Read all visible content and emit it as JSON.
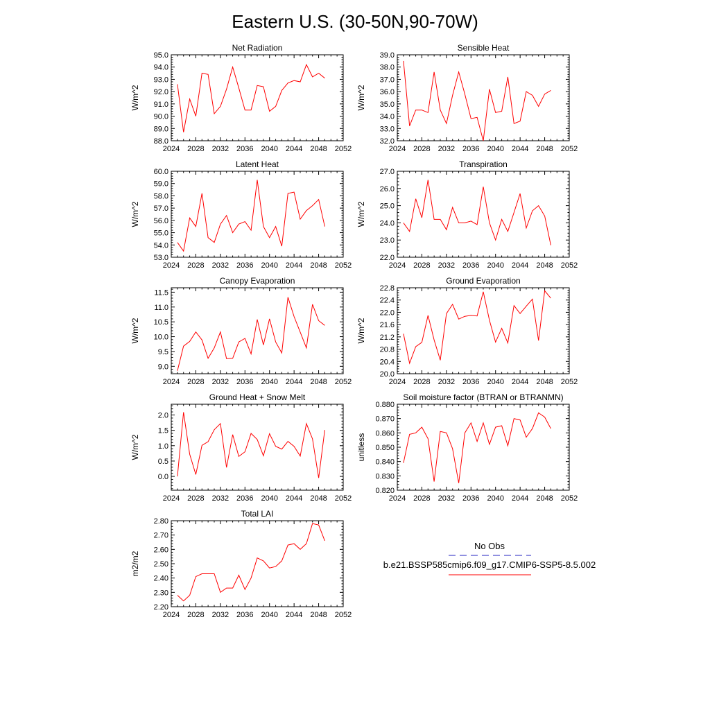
{
  "figure": {
    "title": "Eastern U.S. (30-50N,90-70W)"
  },
  "legend": {
    "entries": [
      {
        "label": "No Obs",
        "color": "#2020c0",
        "style": "dashed"
      },
      {
        "label": "b.e21.BSSP585cmip6.f09_g17.CMIP6-SSP5-8.5.002",
        "color": "#ff0000",
        "style": "solid"
      }
    ]
  },
  "chart_data": [
    {
      "type": "line",
      "title": "Net Radiation",
      "ylabel": "W/m^2",
      "xlim": [
        2024,
        2052
      ],
      "ylim": [
        88.0,
        95.0
      ],
      "xticks": [
        2024,
        2028,
        2032,
        2036,
        2040,
        2044,
        2048,
        2052
      ],
      "yticks": [
        "88.0",
        "89.0",
        "90.0",
        "91.0",
        "92.0",
        "93.0",
        "94.0",
        "95.0"
      ],
      "x": [
        2025,
        2026,
        2027,
        2028,
        2029,
        2030,
        2031,
        2032,
        2033,
        2034,
        2035,
        2036,
        2037,
        2038,
        2039,
        2040,
        2041,
        2042,
        2043,
        2044,
        2045,
        2046,
        2047,
        2048,
        2049
      ],
      "series": [
        {
          "color": "#ff0000",
          "values": [
            92.6,
            88.7,
            91.4,
            90.0,
            93.5,
            93.4,
            90.2,
            90.8,
            92.2,
            94.0,
            92.3,
            90.5,
            90.5,
            92.5,
            92.4,
            90.4,
            90.8,
            92.1,
            92.7,
            92.9,
            92.8,
            94.2,
            93.2,
            93.5,
            93.1
          ]
        }
      ]
    },
    {
      "type": "line",
      "title": "Sensible Heat",
      "ylabel": "W/m^2",
      "xlim": [
        2024,
        2052
      ],
      "ylim": [
        32.0,
        39.0
      ],
      "xticks": [
        2024,
        2028,
        2032,
        2036,
        2040,
        2044,
        2048,
        2052
      ],
      "yticks": [
        "32.0",
        "33.0",
        "34.0",
        "35.0",
        "36.0",
        "37.0",
        "38.0",
        "39.0"
      ],
      "x": [
        2025,
        2026,
        2027,
        2028,
        2029,
        2030,
        2031,
        2032,
        2033,
        2034,
        2035,
        2036,
        2037,
        2038,
        2039,
        2040,
        2041,
        2042,
        2043,
        2044,
        2045,
        2046,
        2047,
        2048,
        2049
      ],
      "series": [
        {
          "color": "#ff0000",
          "values": [
            38.5,
            33.2,
            34.5,
            34.5,
            34.3,
            37.6,
            34.5,
            33.4,
            35.7,
            37.6,
            35.8,
            33.8,
            33.9,
            32.0,
            36.2,
            34.3,
            34.4,
            37.2,
            33.4,
            33.6,
            36.0,
            35.7,
            34.8,
            35.8,
            36.1
          ]
        }
      ]
    },
    {
      "type": "line",
      "title": "Latent Heat",
      "ylabel": "W/m^2",
      "xlim": [
        2024,
        2052
      ],
      "ylim": [
        53.0,
        60.0
      ],
      "xticks": [
        2024,
        2028,
        2032,
        2036,
        2040,
        2044,
        2048,
        2052
      ],
      "yticks": [
        "53.0",
        "54.0",
        "55.0",
        "56.0",
        "57.0",
        "58.0",
        "59.0",
        "60.0"
      ],
      "x": [
        2025,
        2026,
        2027,
        2028,
        2029,
        2030,
        2031,
        2032,
        2033,
        2034,
        2035,
        2036,
        2037,
        2038,
        2039,
        2040,
        2041,
        2042,
        2043,
        2044,
        2045,
        2046,
        2047,
        2048,
        2049
      ],
      "series": [
        {
          "color": "#ff0000",
          "values": [
            54.2,
            53.5,
            56.2,
            55.5,
            58.2,
            54.6,
            54.2,
            55.7,
            56.4,
            55.0,
            55.7,
            55.9,
            55.2,
            59.3,
            55.5,
            54.6,
            55.5,
            53.9,
            58.2,
            58.3,
            56.1,
            56.8,
            57.2,
            57.7,
            55.5
          ]
        }
      ]
    },
    {
      "type": "line",
      "title": "Transpiration",
      "ylabel": "W/m^2",
      "xlim": [
        2024,
        2052
      ],
      "ylim": [
        22.0,
        27.0
      ],
      "xticks": [
        2024,
        2028,
        2032,
        2036,
        2040,
        2044,
        2048,
        2052
      ],
      "yticks": [
        "22.0",
        "23.0",
        "24.0",
        "25.0",
        "26.0",
        "27.0"
      ],
      "x": [
        2025,
        2026,
        2027,
        2028,
        2029,
        2030,
        2031,
        2032,
        2033,
        2034,
        2035,
        2036,
        2037,
        2038,
        2039,
        2040,
        2041,
        2042,
        2043,
        2044,
        2045,
        2046,
        2047,
        2048,
        2049
      ],
      "series": [
        {
          "color": "#ff0000",
          "values": [
            24.0,
            23.5,
            25.4,
            24.3,
            26.5,
            24.2,
            24.2,
            23.6,
            24.9,
            24.0,
            24.0,
            24.1,
            23.9,
            26.1,
            24.0,
            23.0,
            24.2,
            23.5,
            24.6,
            25.7,
            23.7,
            24.7,
            25.0,
            24.4,
            22.7
          ]
        }
      ]
    },
    {
      "type": "line",
      "title": "Canopy Evaporation",
      "ylabel": "W/m^2",
      "xlim": [
        2024,
        2052
      ],
      "ylim": [
        8.75,
        11.65
      ],
      "xticks": [
        2024,
        2028,
        2032,
        2036,
        2040,
        2044,
        2048,
        2052
      ],
      "yticks": [
        "9.0",
        "9.5",
        "10.0",
        "10.5",
        "11.0",
        "11.5"
      ],
      "x": [
        2025,
        2026,
        2027,
        2028,
        2029,
        2030,
        2031,
        2032,
        2033,
        2034,
        2035,
        2036,
        2037,
        2038,
        2039,
        2040,
        2041,
        2042,
        2043,
        2044,
        2045,
        2046,
        2047,
        2048,
        2049
      ],
      "series": [
        {
          "color": "#ff0000",
          "values": [
            8.85,
            9.68,
            9.84,
            10.16,
            9.89,
            9.27,
            9.62,
            10.16,
            9.26,
            9.27,
            9.82,
            9.94,
            9.42,
            10.58,
            9.72,
            10.6,
            9.82,
            9.45,
            11.33,
            10.68,
            10.15,
            9.62,
            11.09,
            10.54,
            10.38
          ]
        }
      ]
    },
    {
      "type": "line",
      "title": "Ground Evaporation",
      "ylabel": "W/m^2",
      "xlim": [
        2024,
        2052
      ],
      "ylim": [
        20.0,
        22.8
      ],
      "xticks": [
        2024,
        2028,
        2032,
        2036,
        2040,
        2044,
        2048,
        2052
      ],
      "yticks": [
        "20.0",
        "20.4",
        "20.8",
        "21.2",
        "21.6",
        "22.0",
        "22.4",
        "22.8"
      ],
      "x": [
        2025,
        2026,
        2027,
        2028,
        2029,
        2030,
        2031,
        2032,
        2033,
        2034,
        2035,
        2036,
        2037,
        2038,
        2039,
        2040,
        2041,
        2042,
        2043,
        2044,
        2045,
        2046,
        2047,
        2048,
        2049
      ],
      "series": [
        {
          "color": "#ff0000",
          "values": [
            21.3,
            20.34,
            20.88,
            21.02,
            21.9,
            21.1,
            20.44,
            21.96,
            22.26,
            21.78,
            21.87,
            21.9,
            21.88,
            22.67,
            21.74,
            21.03,
            21.48,
            21.0,
            22.22,
            21.96,
            22.2,
            22.43,
            21.08,
            22.7,
            22.46
          ]
        }
      ]
    },
    {
      "type": "line",
      "title": "Ground Heat + Snow Melt",
      "ylabel": "W/m^2",
      "xlim": [
        2024,
        2052
      ],
      "ylim": [
        -0.45,
        2.35
      ],
      "xticks": [
        2024,
        2028,
        2032,
        2036,
        2040,
        2044,
        2048,
        2052
      ],
      "yticks": [
        "0.0",
        "0.5",
        "1.0",
        "1.5",
        "2.0"
      ],
      "x": [
        2025,
        2026,
        2027,
        2028,
        2029,
        2030,
        2031,
        2032,
        2033,
        2034,
        2035,
        2036,
        2037,
        2038,
        2039,
        2040,
        2041,
        2042,
        2043,
        2044,
        2045,
        2046,
        2047,
        2048,
        2049
      ],
      "series": [
        {
          "color": "#ff0000",
          "values": [
            0.0,
            2.09,
            0.72,
            0.06,
            1.01,
            1.13,
            1.52,
            1.72,
            0.29,
            1.36,
            0.65,
            0.8,
            1.4,
            1.2,
            0.67,
            1.39,
            0.98,
            0.89,
            1.14,
            0.98,
            0.66,
            1.72,
            1.22,
            -0.05,
            1.51
          ]
        }
      ]
    },
    {
      "type": "line",
      "title": "Soil moisture factor (BTRAN or BTRANMN)",
      "ylabel": "unitless",
      "xlim": [
        2024,
        2052
      ],
      "ylim": [
        0.82,
        0.88
      ],
      "xticks": [
        2024,
        2028,
        2032,
        2036,
        2040,
        2044,
        2048,
        2052
      ],
      "yticks": [
        "0.820",
        "0.830",
        "0.840",
        "0.850",
        "0.860",
        "0.870",
        "0.880"
      ],
      "x": [
        2025,
        2026,
        2027,
        2028,
        2029,
        2030,
        2031,
        2032,
        2033,
        2034,
        2035,
        2036,
        2037,
        2038,
        2039,
        2040,
        2041,
        2042,
        2043,
        2044,
        2045,
        2046,
        2047,
        2048,
        2049
      ],
      "series": [
        {
          "color": "#ff0000",
          "values": [
            0.839,
            0.859,
            0.86,
            0.864,
            0.856,
            0.826,
            0.861,
            0.86,
            0.849,
            0.825,
            0.86,
            0.867,
            0.854,
            0.867,
            0.852,
            0.864,
            0.865,
            0.851,
            0.87,
            0.869,
            0.857,
            0.863,
            0.874,
            0.871,
            0.863
          ]
        }
      ]
    },
    {
      "type": "line",
      "title": "Total LAI",
      "ylabel": "m2/m2",
      "xlim": [
        2024,
        2052
      ],
      "ylim": [
        2.2,
        2.8
      ],
      "xticks": [
        2024,
        2028,
        2032,
        2036,
        2040,
        2044,
        2048,
        2052
      ],
      "yticks": [
        "2.20",
        "2.30",
        "2.40",
        "2.50",
        "2.60",
        "2.70",
        "2.80"
      ],
      "x": [
        2025,
        2026,
        2027,
        2028,
        2029,
        2030,
        2031,
        2032,
        2033,
        2034,
        2035,
        2036,
        2037,
        2038,
        2039,
        2040,
        2041,
        2042,
        2043,
        2044,
        2045,
        2046,
        2047,
        2048,
        2049
      ],
      "series": [
        {
          "color": "#ff0000",
          "values": [
            2.28,
            2.24,
            2.28,
            2.41,
            2.43,
            2.43,
            2.43,
            2.3,
            2.33,
            2.33,
            2.42,
            2.32,
            2.4,
            2.54,
            2.52,
            2.47,
            2.48,
            2.52,
            2.63,
            2.64,
            2.6,
            2.64,
            2.78,
            2.77,
            2.66
          ]
        }
      ]
    }
  ]
}
